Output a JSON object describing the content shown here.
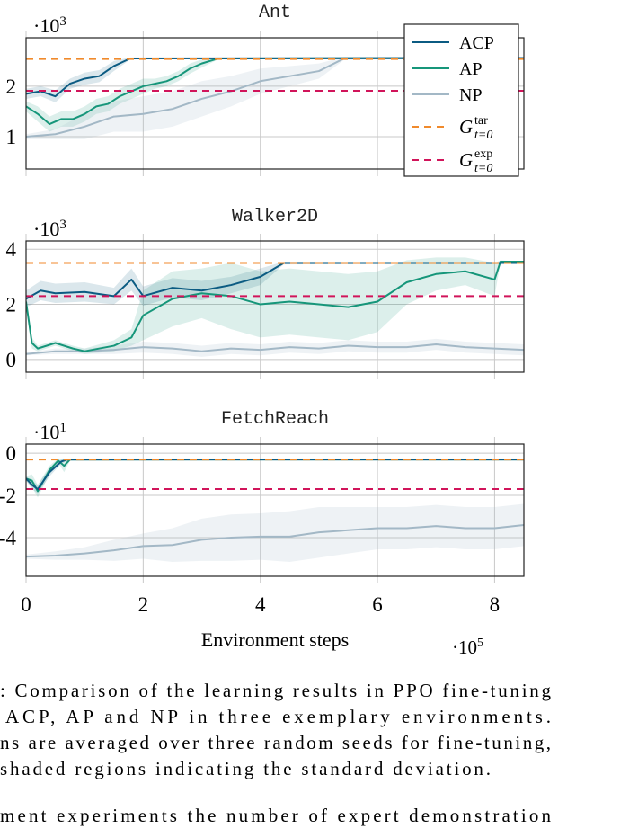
{
  "colors": {
    "ACP": "#0b5b82",
    "AP": "#16967a",
    "NP": "#a3b8c6",
    "G_tar": "#f08a2c",
    "G_exp": "#d1145a"
  },
  "legend": {
    "placement": "top-right",
    "entries": [
      {
        "key": "ACP",
        "label": "ACP",
        "style": "solid"
      },
      {
        "key": "AP",
        "label": "AP",
        "style": "solid"
      },
      {
        "key": "NP",
        "label": "NP",
        "style": "solid"
      },
      {
        "key": "G_tar",
        "label": "G",
        "sup": "tar",
        "sub": "t=0",
        "style": "dashed"
      },
      {
        "key": "G_exp",
        "label": "G",
        "sup": "exp",
        "sub": "t=0",
        "style": "dashed"
      }
    ]
  },
  "shared_x": {
    "label": "Environment steps",
    "multiplier": "·10",
    "multiplier_exp": "5",
    "ticks": [
      0,
      2,
      4,
      6,
      8
    ],
    "tick_labels": [
      "0",
      "2",
      "4",
      "6",
      "8"
    ],
    "range": [
      0,
      8.5
    ]
  },
  "chart_data": [
    {
      "type": "line",
      "title": "Ant",
      "grid": true,
      "y_multiplier": "·10",
      "y_multiplier_exp": "3",
      "ylim": [
        0.36,
        2.96
      ],
      "yticks": [
        1,
        2
      ],
      "ytick_labels": [
        "1",
        "2"
      ],
      "xlim": [
        0,
        8.5
      ],
      "reference_lines": {
        "G_tar": 2.54,
        "G_exp": 1.91
      },
      "series": [
        {
          "name": "ACP",
          "x": [
            0,
            0.25,
            0.5,
            0.75,
            1.0,
            1.25,
            1.5,
            1.78,
            8.5
          ],
          "y": [
            1.85,
            1.9,
            1.8,
            2.05,
            2.15,
            2.2,
            2.4,
            2.55,
            2.56
          ],
          "std": [
            0.1,
            0.1,
            0.12,
            0.1,
            0.12,
            0.12,
            0.1,
            0.02,
            0
          ]
        },
        {
          "name": "AP",
          "x": [
            0,
            0.2,
            0.4,
            0.6,
            0.8,
            1.0,
            1.2,
            1.4,
            1.6,
            1.8,
            2.0,
            2.2,
            2.4,
            2.6,
            2.8,
            3.0,
            3.28,
            8.5
          ],
          "y": [
            1.6,
            1.45,
            1.25,
            1.35,
            1.35,
            1.45,
            1.6,
            1.65,
            1.8,
            1.9,
            2.0,
            2.05,
            2.1,
            2.2,
            2.35,
            2.45,
            2.55,
            2.56
          ],
          "std": [
            0.1,
            0.15,
            0.15,
            0.15,
            0.15,
            0.15,
            0.15,
            0.15,
            0.15,
            0.15,
            0.15,
            0.1,
            0.1,
            0.1,
            0.1,
            0.08,
            0.02,
            0
          ]
        },
        {
          "name": "NP",
          "x": [
            0,
            0.5,
            1.0,
            1.5,
            2.0,
            2.5,
            3.0,
            3.5,
            4.0,
            4.5,
            5.0,
            5.43,
            8.5
          ],
          "y": [
            1.0,
            1.05,
            1.2,
            1.4,
            1.45,
            1.55,
            1.75,
            1.9,
            2.1,
            2.2,
            2.3,
            2.55,
            2.56
          ],
          "std": [
            0.05,
            0.1,
            0.25,
            0.3,
            0.35,
            0.35,
            0.35,
            0.3,
            0.25,
            0.2,
            0.15,
            0.03,
            0
          ]
        }
      ]
    },
    {
      "type": "line",
      "title": "Walker2D",
      "grid": true,
      "y_multiplier": "·10",
      "y_multiplier_exp": "3",
      "ylim": [
        -0.46,
        4.3
      ],
      "yticks": [
        0,
        2,
        4
      ],
      "ytick_labels": [
        "0",
        "2",
        "4"
      ],
      "xlim": [
        0,
        8.5
      ],
      "reference_lines": {
        "G_tar": 3.5,
        "G_exp": 2.3
      },
      "series": [
        {
          "name": "ACP",
          "x": [
            0,
            0.25,
            0.5,
            1.0,
            1.5,
            1.8,
            2.0,
            2.5,
            3.0,
            3.5,
            4.0,
            4.4,
            8.5
          ],
          "y": [
            2.2,
            2.5,
            2.4,
            2.45,
            2.3,
            2.9,
            2.3,
            2.6,
            2.5,
            2.7,
            3.0,
            3.5,
            3.5
          ],
          "std": [
            0.3,
            0.35,
            0.35,
            0.35,
            0.3,
            0.4,
            0.35,
            0.35,
            0.35,
            0.3,
            0.3,
            0.05,
            0
          ]
        },
        {
          "name": "AP",
          "x": [
            0,
            0.1,
            0.2,
            0.5,
            0.8,
            1.0,
            1.5,
            1.8,
            2.0,
            2.5,
            3.0,
            3.5,
            4.0,
            4.5,
            5.0,
            5.5,
            6.0,
            6.5,
            7.0,
            7.5,
            8.0,
            8.1,
            8.5
          ],
          "y": [
            2.1,
            0.6,
            0.4,
            0.6,
            0.4,
            0.3,
            0.5,
            0.8,
            1.6,
            2.2,
            2.4,
            2.3,
            2.0,
            2.1,
            2.0,
            1.9,
            2.1,
            2.8,
            3.1,
            3.2,
            2.9,
            3.55,
            3.55
          ],
          "std": [
            0.1,
            0.2,
            0.1,
            0.1,
            0.1,
            0.1,
            0.2,
            0.3,
            0.9,
            1.0,
            0.9,
            1.2,
            1.2,
            1.2,
            1.2,
            1.2,
            1.1,
            0.8,
            0.6,
            0.5,
            0.6,
            0.05,
            0
          ]
        },
        {
          "name": "NP",
          "x": [
            0,
            0.5,
            1.0,
            1.5,
            2.0,
            2.5,
            3.0,
            3.5,
            4.0,
            4.5,
            5.0,
            5.5,
            6.0,
            6.5,
            7.0,
            7.5,
            8.0,
            8.5
          ],
          "y": [
            0.2,
            0.3,
            0.3,
            0.35,
            0.45,
            0.4,
            0.3,
            0.4,
            0.35,
            0.45,
            0.4,
            0.5,
            0.45,
            0.45,
            0.55,
            0.45,
            0.4,
            0.35
          ],
          "std": [
            0.05,
            0.1,
            0.1,
            0.15,
            0.2,
            0.2,
            0.2,
            0.2,
            0.2,
            0.2,
            0.2,
            0.2,
            0.2,
            0.2,
            0.2,
            0.2,
            0.2,
            0.2
          ]
        }
      ]
    },
    {
      "type": "line",
      "title": "FetchReach",
      "grid": true,
      "y_multiplier": "·10",
      "y_multiplier_exp": "1",
      "ylim": [
        -5.83,
        0.43
      ],
      "yticks": [
        -4,
        -2,
        0
      ],
      "ytick_labels": [
        "-4",
        "-2",
        "0"
      ],
      "xlim": [
        0,
        8.5
      ],
      "reference_lines": {
        "G_tar": -0.3,
        "G_exp": -1.7
      },
      "series": [
        {
          "name": "ACP",
          "x": [
            0,
            0.1,
            0.2,
            0.4,
            0.6,
            0.7,
            8.5
          ],
          "y": [
            -1.2,
            -1.5,
            -1.7,
            -0.9,
            -0.4,
            -0.3,
            -0.3
          ],
          "std": [
            0.1,
            0.2,
            0.2,
            0.2,
            0.1,
            0.05,
            0
          ]
        },
        {
          "name": "AP",
          "x": [
            0,
            0.1,
            0.2,
            0.4,
            0.55,
            0.65,
            0.75,
            8.5
          ],
          "y": [
            -1.2,
            -1.3,
            -1.8,
            -0.8,
            -0.35,
            -0.6,
            -0.3,
            -0.3
          ],
          "std": [
            0.1,
            0.3,
            0.3,
            0.2,
            0.1,
            0.3,
            0.05,
            0
          ]
        },
        {
          "name": "NP",
          "x": [
            0,
            0.5,
            1.0,
            1.5,
            2.0,
            2.5,
            3.0,
            3.5,
            4.0,
            4.5,
            5.0,
            5.5,
            6.0,
            6.5,
            7.0,
            7.5,
            8.0,
            8.5
          ],
          "y": [
            -4.9,
            -4.85,
            -4.75,
            -4.6,
            -4.4,
            -4.35,
            -4.1,
            -4.0,
            -3.95,
            -3.95,
            -3.75,
            -3.65,
            -3.55,
            -3.55,
            -3.45,
            -3.55,
            -3.55,
            -3.4
          ],
          "std": [
            0.1,
            0.2,
            0.3,
            0.5,
            0.6,
            0.8,
            1.0,
            1.1,
            1.1,
            1.2,
            1.2,
            1.1,
            1.0,
            1.0,
            1.0,
            1.0,
            1.0,
            1.0
          ]
        }
      ]
    }
  ],
  "caption": {
    "lines": [
      ": Comparison of the learning results in PPO fine-tuning",
      "ACP, AP and NP in three exemplary environments.",
      "ns are averaged over three random seeds for fine-tuning,",
      "shaded regions indicating the standard deviation."
    ],
    "next_paragraph": "ment experiments the number of expert demonstration"
  }
}
